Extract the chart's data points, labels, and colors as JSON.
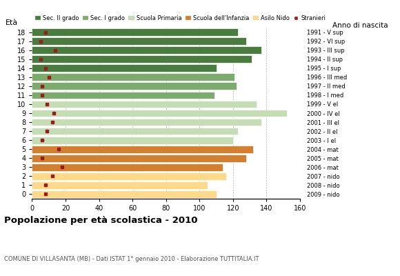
{
  "ages": [
    18,
    17,
    16,
    15,
    14,
    13,
    12,
    11,
    10,
    9,
    8,
    7,
    6,
    5,
    4,
    3,
    2,
    1,
    0
  ],
  "right_labels": [
    "1991 - V sup",
    "1992 - VI sup",
    "1993 - III sup",
    "1994 - II sup",
    "1995 - I sup",
    "1996 - III med",
    "1997 - II med",
    "1998 - I med",
    "1999 - V el",
    "2000 - IV el",
    "2001 - III el",
    "2002 - II el",
    "2003 - I el",
    "2004 - mat",
    "2005 - mat",
    "2006 - mat",
    "2007 - nido",
    "2008 - nido",
    "2009 - nido"
  ],
  "bar_values": [
    123,
    128,
    137,
    131,
    110,
    121,
    122,
    109,
    134,
    152,
    137,
    123,
    120,
    132,
    128,
    114,
    116,
    105,
    110
  ],
  "stranieri": [
    8,
    5,
    14,
    5,
    8,
    10,
    6,
    6,
    9,
    13,
    12,
    9,
    6,
    16,
    6,
    18,
    12,
    8,
    8
  ],
  "colors_by_age": {
    "18": "#4a7c3f",
    "17": "#4a7c3f",
    "16": "#4a7c3f",
    "15": "#4a7c3f",
    "14": "#4a7c3f",
    "13": "#7dab6e",
    "12": "#7dab6e",
    "11": "#7dab6e",
    "10": "#c5dcb4",
    "9": "#c5dcb4",
    "8": "#c5dcb4",
    "7": "#c5dcb4",
    "6": "#c5dcb4",
    "5": "#d27f30",
    "4": "#d27f30",
    "3": "#d27f30",
    "2": "#ffd98a",
    "1": "#ffd98a",
    "0": "#ffd98a"
  },
  "stranieri_color": "#9b1c1c",
  "title": "Popolazione per età scolastica - 2010",
  "subtitle": "COMUNE DI VILLASANTA (MB) - Dati ISTAT 1° gennaio 2010 - Elaborazione TUTTITALIA.IT",
  "ylabel": "Età",
  "xlabel_right": "Anno di nascita",
  "xlim": [
    0,
    160
  ],
  "xticks": [
    0,
    20,
    40,
    60,
    80,
    100,
    120,
    140,
    160
  ],
  "grid_color": "#bbbbbb",
  "bar_height": 0.82,
  "background_color": "#ffffff",
  "legend_labels": [
    "Sec. II grado",
    "Sec. I grado",
    "Scuola Primaria",
    "Scuola dell'Infanzia",
    "Asilo Nido",
    "Stranieri"
  ],
  "legend_colors": [
    "#4a7c3f",
    "#7dab6e",
    "#c5dcb4",
    "#d27f30",
    "#ffd98a",
    "#9b1c1c"
  ]
}
